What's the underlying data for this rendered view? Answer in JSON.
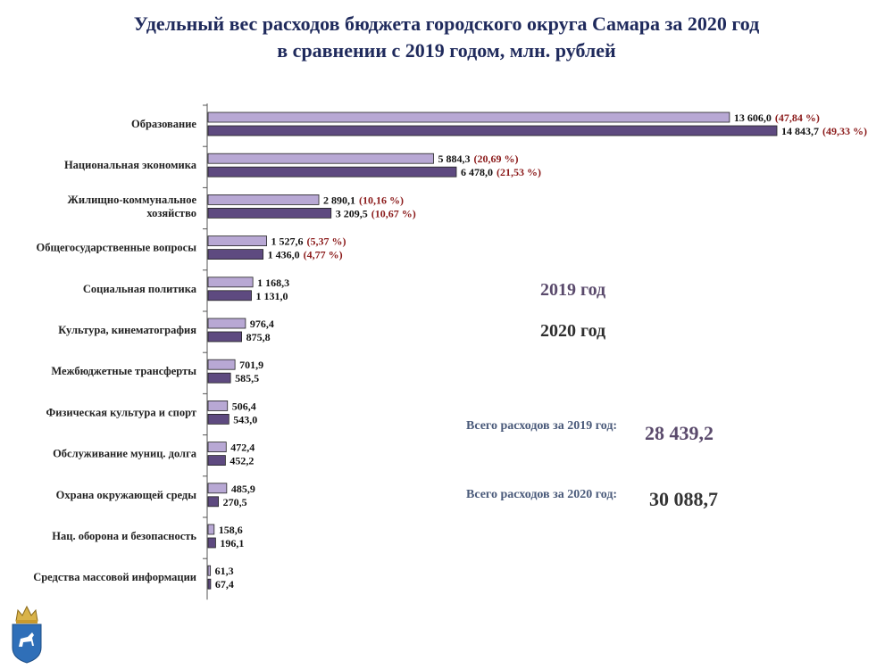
{
  "title": {
    "line1": "Удельный вес расходов бюджета городского округа Самара за 2020 год",
    "line2": "в сравнении с 2019 годом, млн. рублей"
  },
  "legend": {
    "y2019": "2019 год",
    "y2020": "2020 год"
  },
  "totals": {
    "label_2019": "Всего расходов за 2019 год:",
    "value_2019": "28 439,2",
    "label_2020": "Всего расходов за 2020 год:",
    "value_2020": "30 088,7"
  },
  "colors": {
    "bar_2019": "#b8a8d4",
    "bar_2020": "#5e4a80",
    "percent": "#8b1a1a",
    "title": "#1f2a5c"
  },
  "emblem": {
    "icon": "samara-coat-of-arms-icon"
  },
  "chart_data": {
    "type": "bar",
    "orientation": "horizontal",
    "title": "Удельный вес расходов бюджета городского округа Самара за 2020 год в сравнении с 2019 годом, млн. рублей",
    "categories": [
      [
        "Образование"
      ],
      [
        "Национальная экономика"
      ],
      [
        "Жилищно-коммунальное",
        "хозяйство"
      ],
      [
        "Общегосударственные вопросы"
      ],
      [
        "Социальная политика"
      ],
      [
        "Культура, кинематография"
      ],
      [
        "Межбюджетные трансферты"
      ],
      [
        "Физическая культура и спорт"
      ],
      [
        "Обслуживание муниц. долга"
      ],
      [
        "Охрана окружающей среды"
      ],
      [
        "Нац. оборона и безопасность"
      ],
      [
        "Средства массовой информации"
      ]
    ],
    "series": [
      {
        "name": "2019 год",
        "values": [
          13606.0,
          5884.3,
          2890.1,
          1527.6,
          1168.3,
          976.4,
          701.9,
          506.4,
          472.4,
          485.9,
          158.6,
          61.3
        ],
        "labels": [
          "13 606,0",
          "5 884,3",
          "2 890,1",
          "1 527,6",
          "1 168,3",
          "976,4",
          "701,9",
          "506,4",
          "472,4",
          "485,9",
          "158,6",
          "61,3"
        ],
        "percents": [
          "(47,84 %)",
          "(20,69 %)",
          "(10,16 %)",
          "(5,37 %)",
          "",
          "",
          "",
          "",
          "",
          "",
          "",
          ""
        ]
      },
      {
        "name": "2020 год",
        "values": [
          14843.7,
          6478.0,
          3209.5,
          1436.0,
          1131.0,
          875.8,
          585.5,
          543.0,
          452.2,
          270.5,
          196.1,
          67.4
        ],
        "labels": [
          "14 843,7",
          "6 478,0",
          "3 209,5",
          "1 436,0",
          "1 131,0",
          "875,8",
          "585,5",
          "543,0",
          "452,2",
          "270,5",
          "196,1",
          "67,4"
        ],
        "percents": [
          "(49,33 %)",
          "(21,53 %)",
          "(10,67 %)",
          "(4,77 %)",
          "",
          "",
          "",
          "",
          "",
          "",
          "",
          ""
        ]
      }
    ]
  }
}
